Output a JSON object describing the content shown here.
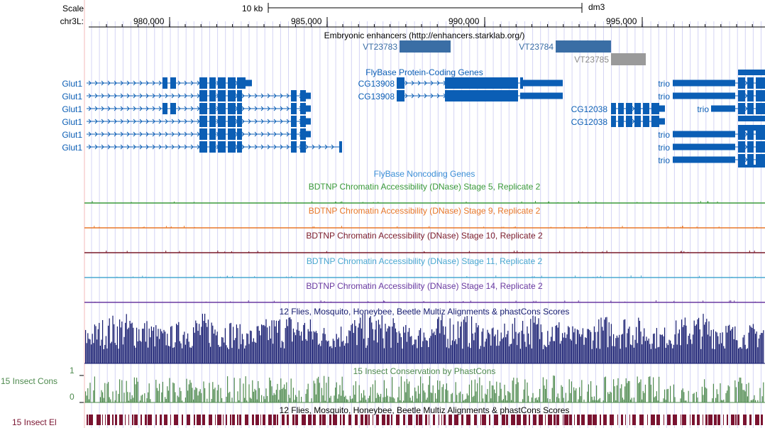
{
  "header": {
    "scale_label": "Scale",
    "scale_bar_text": "10 kb",
    "assembly": "dm3",
    "chrom_label": "chr3L:",
    "positions": [
      "980,000",
      "985,000",
      "990,000",
      "995,000"
    ]
  },
  "tracks": {
    "enhancers": {
      "title": "Embryonic enhancers (http://enhancers.starklab.org/)",
      "items": [
        "VT23783",
        "VT23784",
        "VT23785"
      ],
      "colors": {
        "main": "#3a6ea5",
        "faded": "#9a9a9a"
      }
    },
    "flybase_coding": {
      "title": "FlyBase Protein-Coding Genes",
      "color": "#0b5eb5",
      "glut1_labels": [
        "Glut1",
        "Glut1",
        "Glut1",
        "Glut1",
        "Glut1",
        "Glut1"
      ],
      "cg13908_labels": [
        "CG13908",
        "CG13908"
      ],
      "cg12038_labels": [
        "CG12038",
        "CG12038"
      ],
      "trio_labels": [
        "trio",
        "trio",
        "trio",
        "trio",
        "trio",
        "trio"
      ]
    },
    "flybase_noncoding": {
      "title": "FlyBase Noncoding Genes",
      "color": "#3b8ed6"
    },
    "dnase": [
      {
        "title": "BDTNP Chromatin Accessibility (DNase) Stage 5, Replicate 2",
        "color": "#3a9a3a"
      },
      {
        "title": "BDTNP Chromatin Accessibility (DNase) Stage 9, Replicate 2",
        "color": "#e8782a"
      },
      {
        "title": "BDTNP Chromatin Accessibility (DNase) Stage 10, Replicate 2",
        "color": "#7a1a2a"
      },
      {
        "title": "BDTNP Chromatin Accessibility (DNase) Stage 11, Replicate 2",
        "color": "#4aa8d0"
      },
      {
        "title": "BDTNP Chromatin Accessibility (DNase) Stage 14, Replicate 2",
        "color": "#6a3aa0"
      }
    ],
    "multiz": {
      "title": "12 Flies, Mosquito, Honeybee, Beetle Multiz Alignments & phastCons Scores",
      "color": "#13196e"
    },
    "insect_cons": {
      "title": "15 Insect Conservation by PhastCons",
      "side_label": "15 Insect Cons",
      "axis_max": "1",
      "axis_min": "0",
      "color": "#4e8a4e"
    },
    "insect_el": {
      "title": "12 Flies, Mosquito, Honeybee, Beetle Multiz Alignments & phastCons Scores",
      "side_label": "15 Insect El",
      "color": "#7a1330"
    }
  }
}
